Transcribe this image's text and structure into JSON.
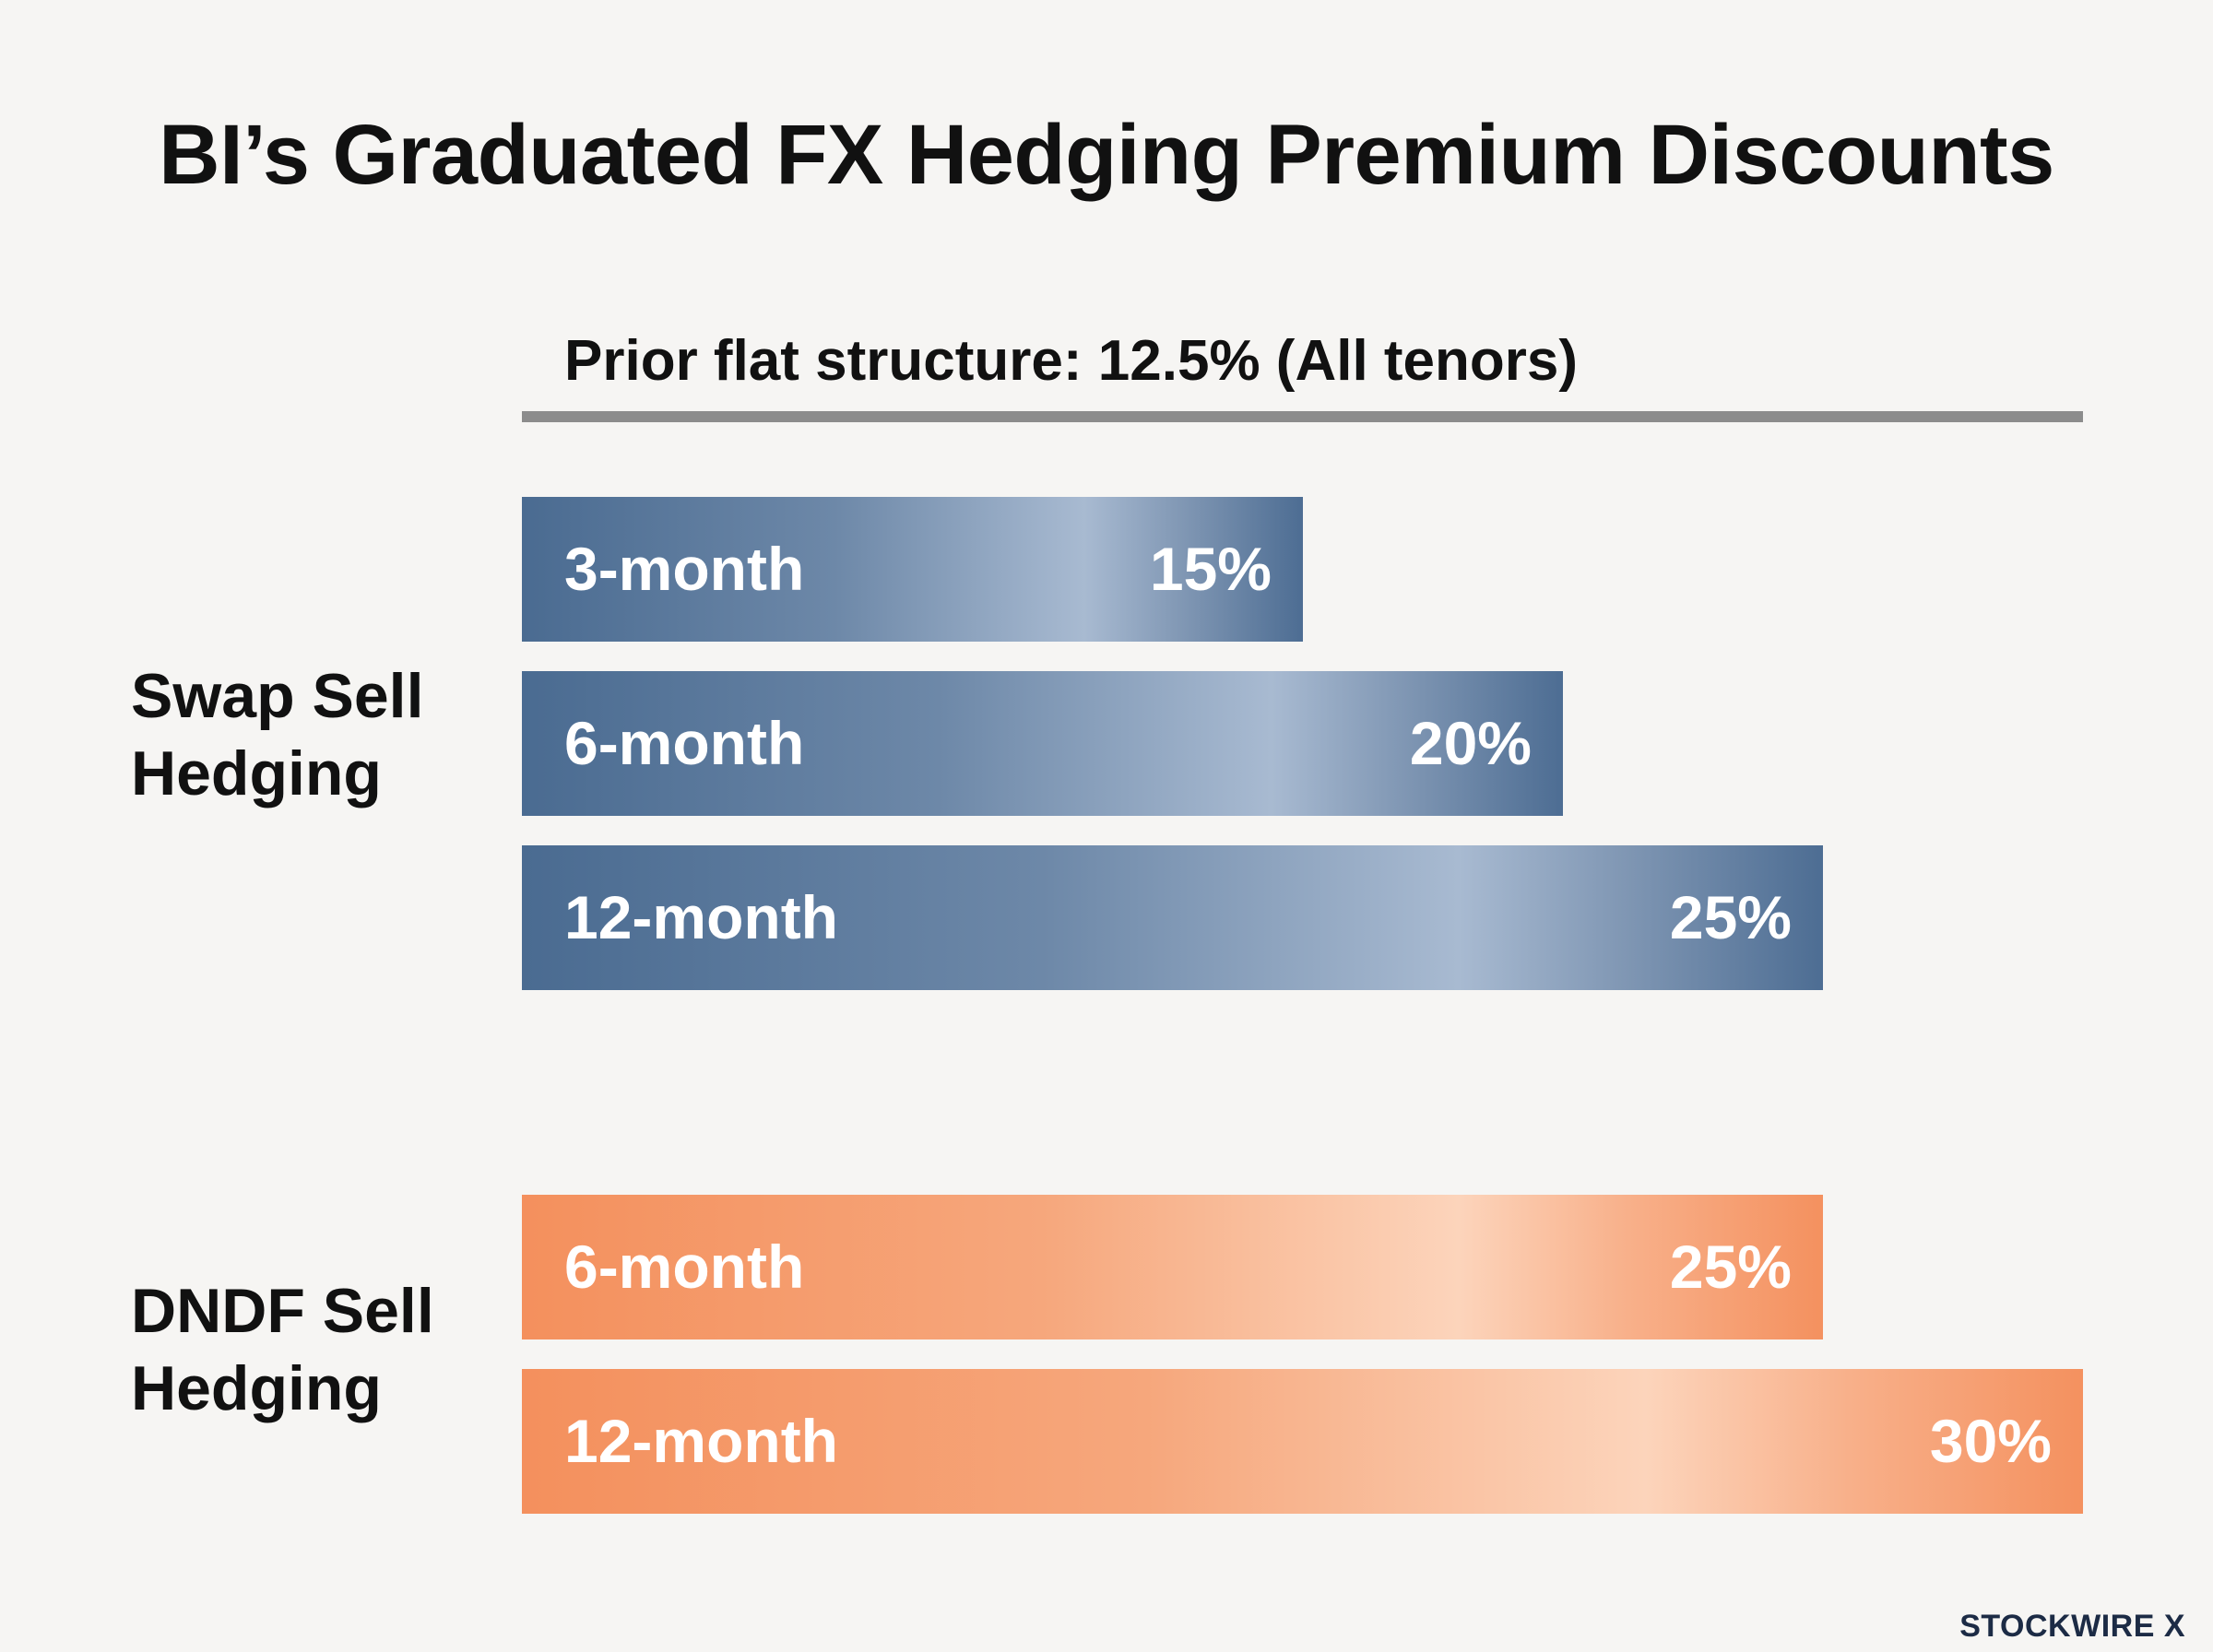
{
  "title": "BI’s Graduated FX Hedging Premium Discounts",
  "baseline": {
    "label": "Prior flat structure: 12.5% (All tenors)",
    "value": 12.5
  },
  "colors": {
    "swap": "#4a6b91",
    "dndf": "#f4905d",
    "baseline_rule": "#8c8c8c"
  },
  "brand": "STOCKWIRE X",
  "chart_data": {
    "type": "bar",
    "orientation": "horizontal",
    "title": "BI’s Graduated FX Hedging Premium Discounts",
    "reference_line": {
      "label": "Prior flat structure: 12.5% (All tenors)",
      "value": 12.5
    },
    "groups": [
      {
        "name": "Swap Sell\nHedging",
        "color": "#4a6b91",
        "bars": [
          {
            "label": "3-month",
            "value": 15,
            "value_label": "15%"
          },
          {
            "label": "6-month",
            "value": 20,
            "value_label": "20%"
          },
          {
            "label": "12-month",
            "value": 25,
            "value_label": "25%"
          }
        ]
      },
      {
        "name": "DNDF Sell\nHedging",
        "color": "#f4905d",
        "bars": [
          {
            "label": "6-month",
            "value": 25,
            "value_label": "25%"
          },
          {
            "label": "12-month",
            "value": 30,
            "value_label": "30%"
          }
        ]
      }
    ]
  }
}
